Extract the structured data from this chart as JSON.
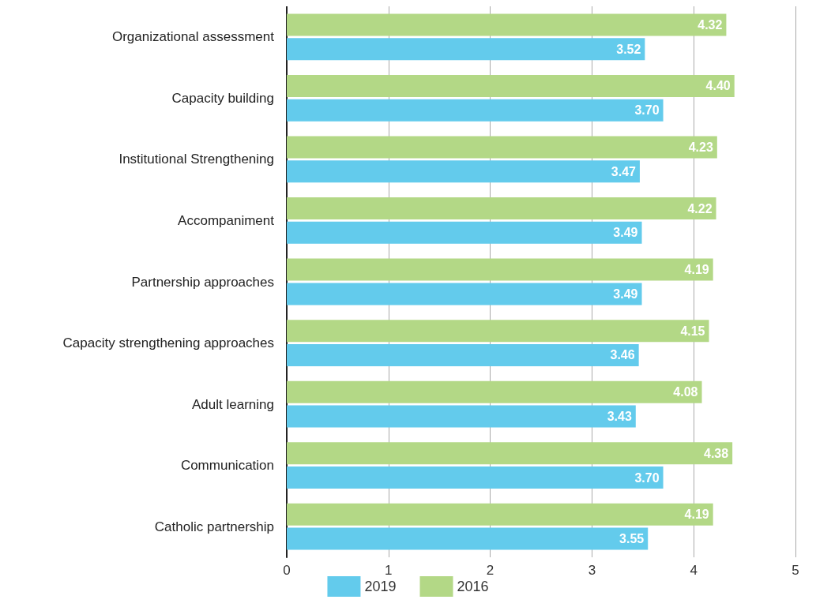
{
  "chart_data": {
    "type": "bar",
    "orientation": "horizontal",
    "categories": [
      "Organizational assessment",
      "Capacity building",
      "Institutional Strengthening",
      "Accompaniment",
      "Partnership approaches",
      "Capacity strengthening approaches",
      "Adult learning",
      "Communication",
      "Catholic partnership"
    ],
    "series": [
      {
        "name": "2019",
        "color": "#63cbec",
        "values": [
          3.52,
          3.7,
          3.47,
          3.49,
          3.49,
          3.46,
          3.43,
          3.7,
          3.55
        ],
        "value_labels": [
          "3.52",
          "3.70",
          "3.47",
          "3.49",
          "3.49",
          "3.46",
          "3.43",
          "3.70",
          "3.55"
        ]
      },
      {
        "name": "2016",
        "color": "#b3d886",
        "values": [
          4.32,
          4.4,
          4.23,
          4.22,
          4.19,
          4.15,
          4.08,
          4.38,
          4.19
        ],
        "value_labels": [
          "4.32",
          "4.40",
          "4.23",
          "4.22",
          "4.19",
          "4.15",
          "4.08",
          "4.38",
          "4.19"
        ]
      }
    ],
    "xlim": [
      0,
      5
    ],
    "xticks": [
      0,
      1,
      2,
      3,
      4,
      5
    ],
    "grid": "x",
    "legend": "bottom"
  }
}
